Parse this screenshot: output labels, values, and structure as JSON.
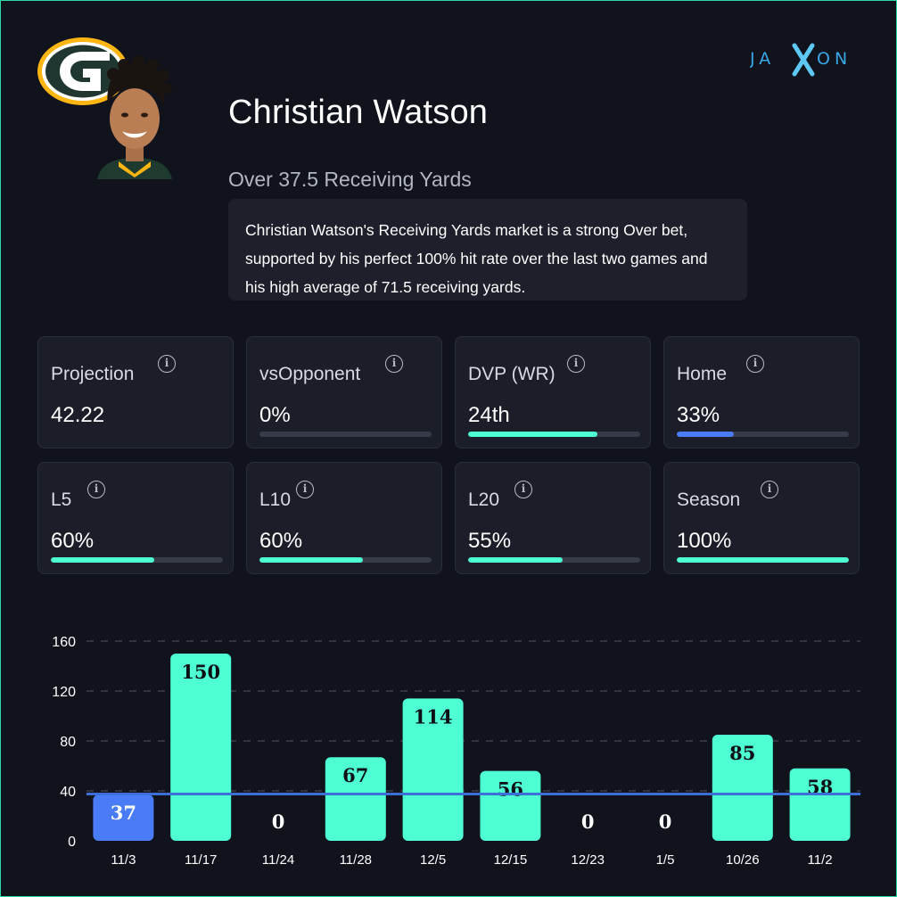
{
  "player": {
    "name": "Christian Watson",
    "market": "Over 37.5 Receiving Yards",
    "summary": "Christian Watson's Receiving Yards market is a strong Over bet, supported by his perfect 100% hit rate over the last two games and his high average of 71.5 receiving yards."
  },
  "brand": {
    "name": "JAXON"
  },
  "colors": {
    "accent": "#4dffd2",
    "blue": "#4a7cf7",
    "line": "#3d6fd9",
    "background": "#10121c",
    "card": "#1b1d28"
  },
  "stats": [
    {
      "label": "Projection",
      "value": "42.22",
      "bar": null
    },
    {
      "label": "vsOpponent",
      "value": "0%",
      "bar": {
        "fraction": 0.0,
        "color": "#4dffd2"
      }
    },
    {
      "label": "DVP (WR)",
      "value": "24th",
      "bar": {
        "fraction": 0.75,
        "color": "#4dffd2"
      }
    },
    {
      "label": "Home",
      "value": "33%",
      "bar": {
        "fraction": 0.33,
        "color": "#4a7cf7"
      }
    },
    {
      "label": "L5",
      "value": "60%",
      "bar": {
        "fraction": 0.6,
        "color": "#4dffd2"
      }
    },
    {
      "label": "L10",
      "value": "60%",
      "bar": {
        "fraction": 0.6,
        "color": "#4dffd2"
      }
    },
    {
      "label": "L20",
      "value": "55%",
      "bar": {
        "fraction": 0.55,
        "color": "#4dffd2"
      }
    },
    {
      "label": "Season",
      "value": "100%",
      "bar": {
        "fraction": 1.0,
        "color": "#4dffd2"
      }
    }
  ],
  "chart_data": {
    "type": "bar",
    "title": "",
    "xlabel": "",
    "ylabel": "",
    "categories": [
      "11/3",
      "11/17",
      "11/24",
      "11/28",
      "12/5",
      "12/15",
      "12/23",
      "1/5",
      "10/26",
      "11/2"
    ],
    "values": [
      37,
      150,
      0,
      67,
      114,
      56,
      0,
      0,
      85,
      58
    ],
    "bar_colors": [
      "#4a7cf7",
      "#4dffd2",
      "#4dffd2",
      "#4dffd2",
      "#4dffd2",
      "#4dffd2",
      "#4dffd2",
      "#4dffd2",
      "#4dffd2",
      "#4dffd2"
    ],
    "line": 37.5,
    "ylim": [
      0,
      160
    ],
    "yticks": [
      0,
      40,
      80,
      120,
      160
    ],
    "grid": true
  }
}
